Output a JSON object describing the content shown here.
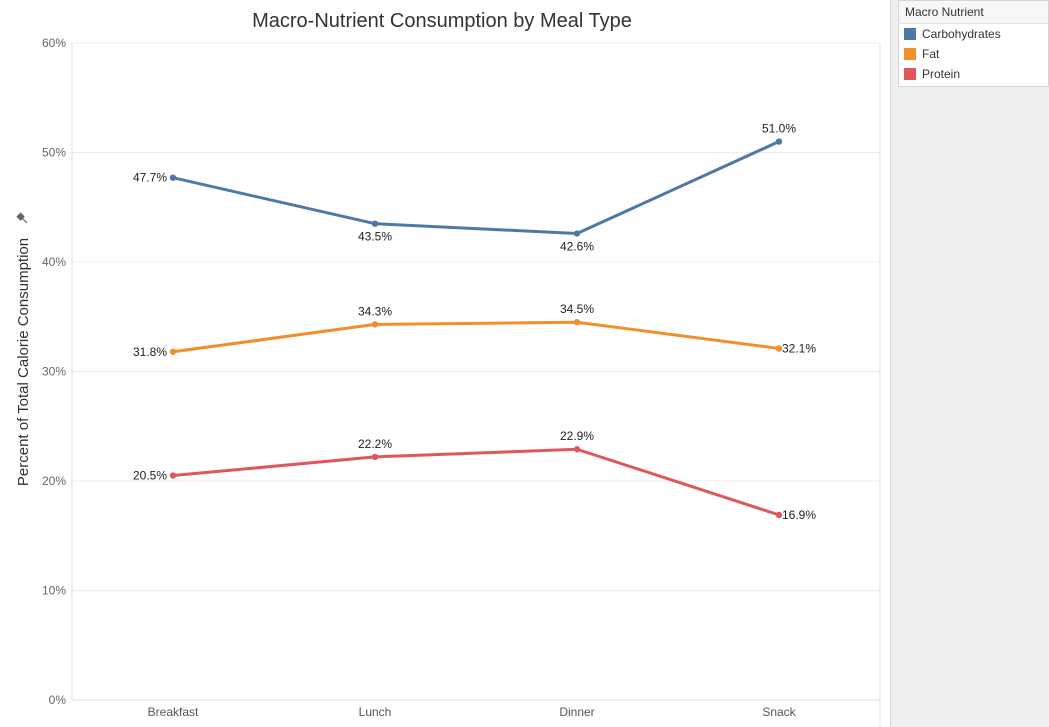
{
  "chart_data": {
    "type": "line",
    "title": "Macro-Nutrient Consumption by Meal Type",
    "xlabel": "",
    "ylabel": "Percent of Total Calorie Consumption",
    "categories": [
      "Breakfast",
      "Lunch",
      "Dinner",
      "Snack"
    ],
    "ylim": [
      0,
      60
    ],
    "yticks": [
      "0%",
      "10%",
      "20%",
      "30%",
      "40%",
      "50%",
      "60%"
    ],
    "grid": true,
    "legend_title": "Macro Nutrient",
    "legend_position": "top-right",
    "series": [
      {
        "name": "Carbohydrates",
        "color": "#4e79a7",
        "values": [
          47.7,
          43.5,
          42.6,
          51.0
        ],
        "labels": [
          "47.7%",
          "43.5%",
          "42.6%",
          "51.0%"
        ]
      },
      {
        "name": "Fat",
        "color": "#f28e2b",
        "values": [
          31.8,
          34.3,
          34.5,
          32.1
        ],
        "labels": [
          "31.8%",
          "34.3%",
          "34.5%",
          "32.1%"
        ]
      },
      {
        "name": "Protein",
        "color": "#e15759",
        "values": [
          20.5,
          22.2,
          22.9,
          16.9
        ],
        "labels": [
          "20.5%",
          "22.2%",
          "22.9%",
          "16.9%"
        ]
      }
    ]
  }
}
